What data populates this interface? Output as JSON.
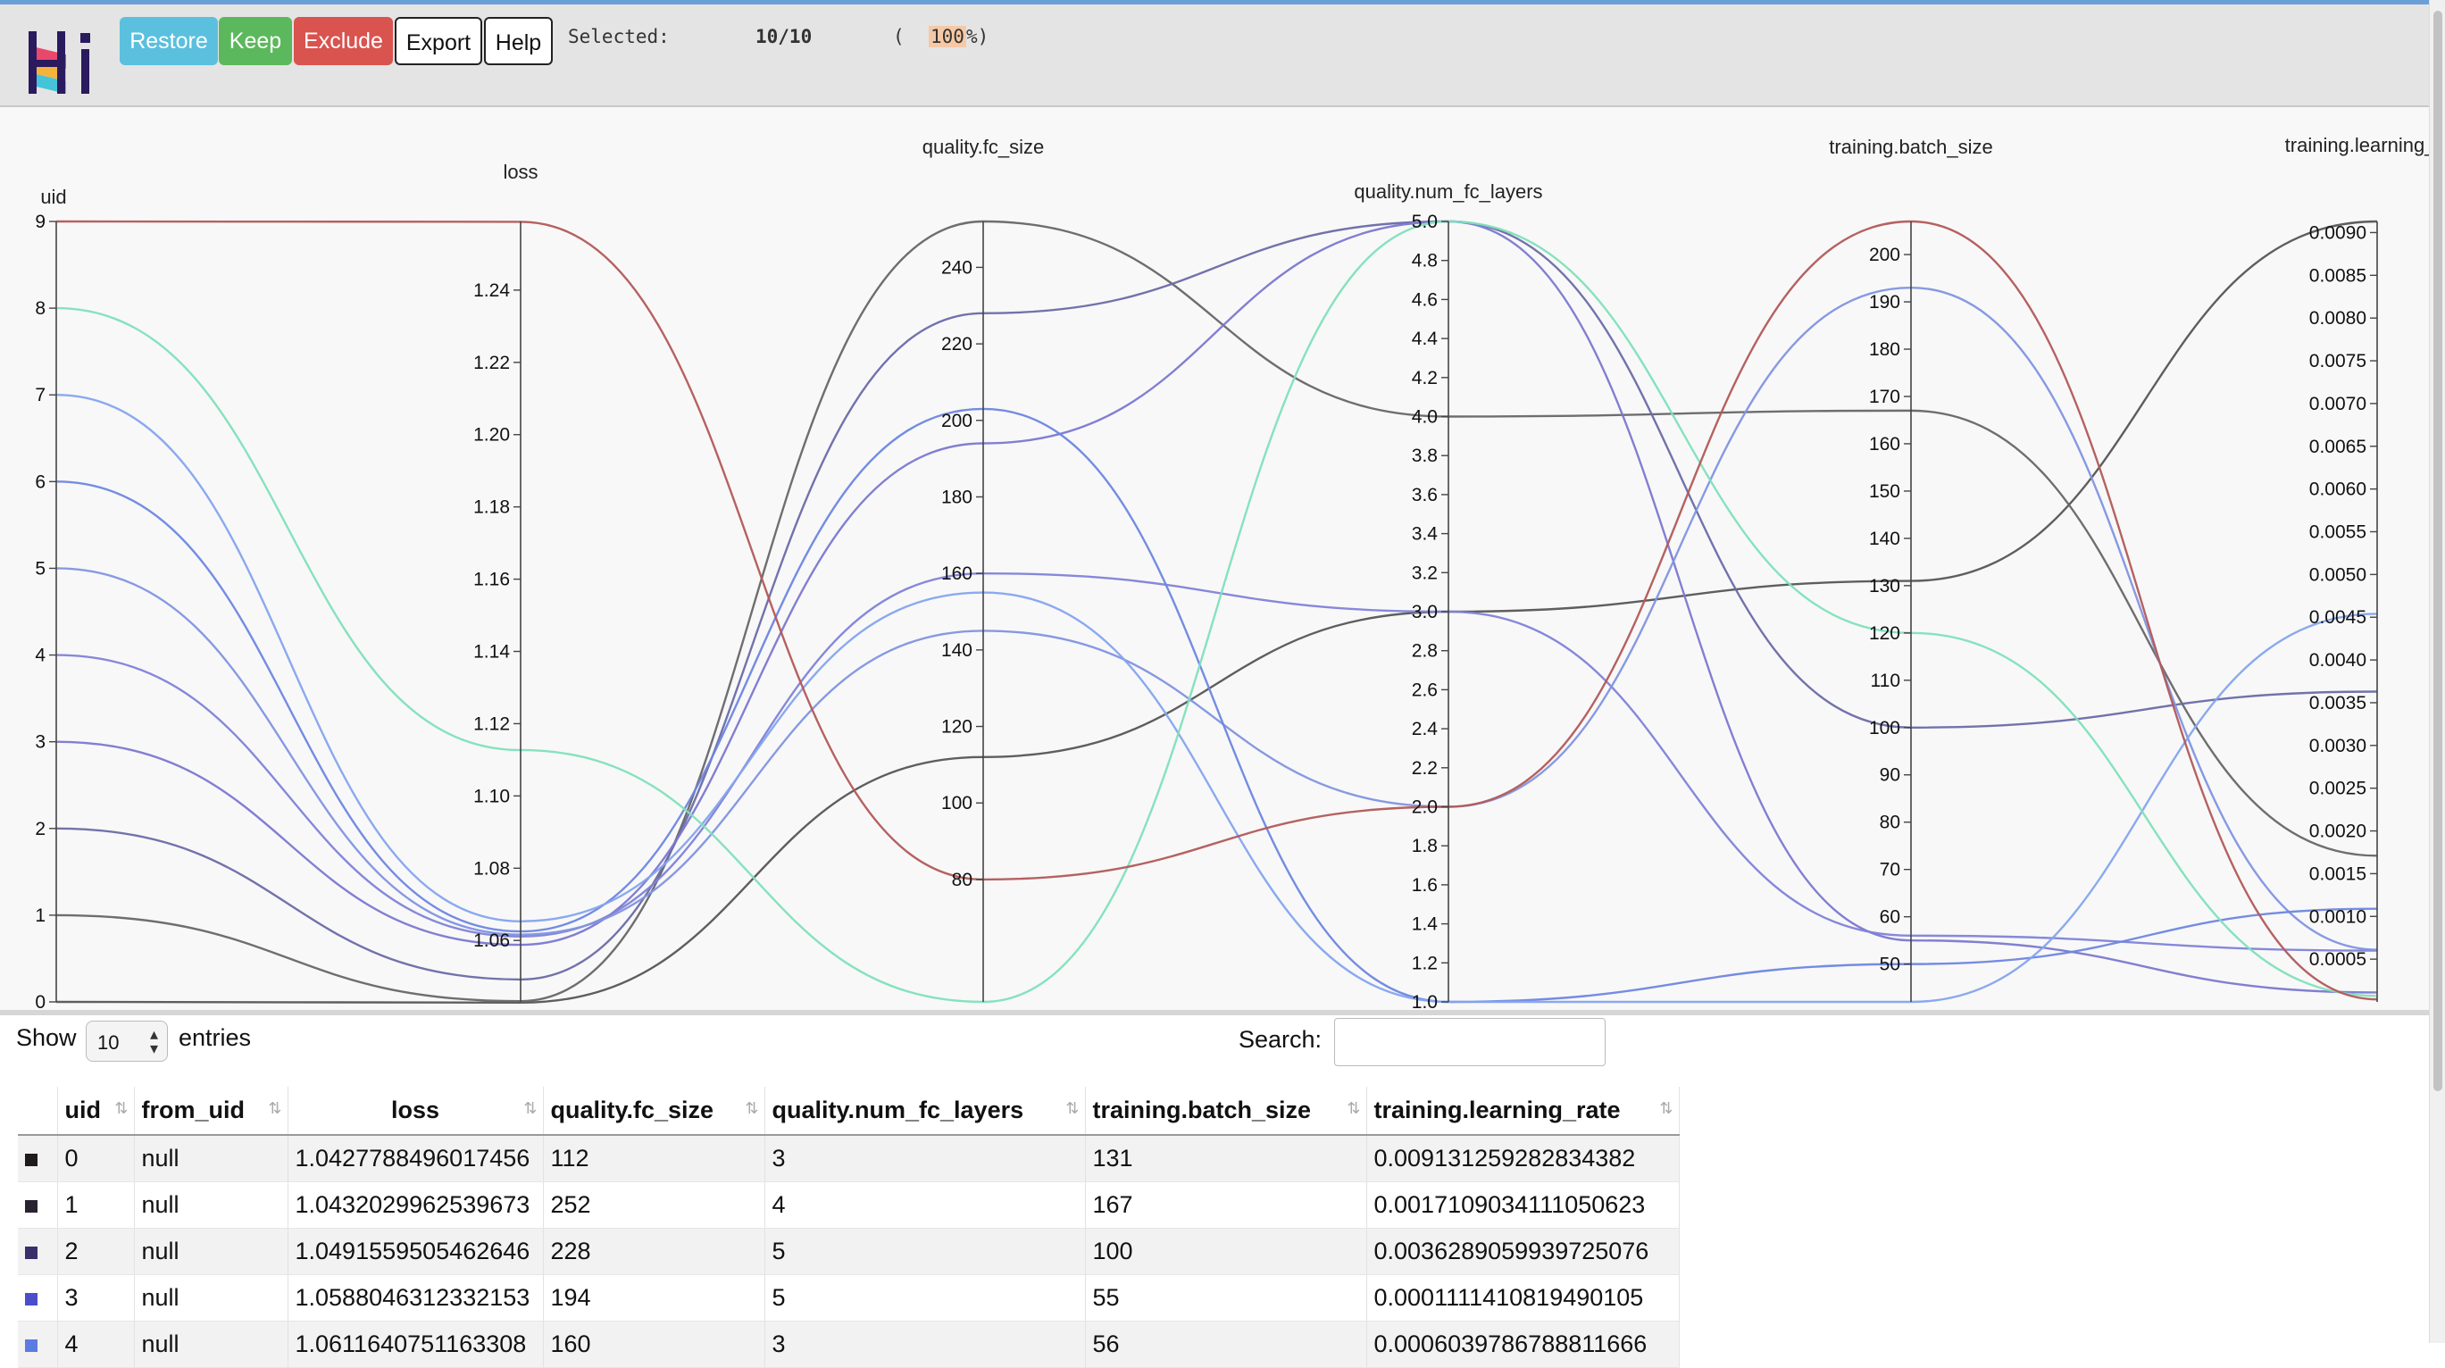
{
  "header": {
    "logo_text": "Hi",
    "buttons": {
      "restore": "Restore",
      "keep": "Keep",
      "exclude": "Exclude",
      "export": "Export",
      "help": "Help"
    },
    "selected_label": "Selected:",
    "selected_count": "10/10",
    "pct_open": "(",
    "selected_pct": "100",
    "pct_close": "%)"
  },
  "colors": {
    "restore": "#5bc0de",
    "keep": "#5cb85c",
    "exclude": "#d9534f",
    "row_0": "#1f1a1c",
    "row_1": "#2a2230",
    "row_2": "#3a2f6a",
    "row_3": "#4b4ec8",
    "row_4": "#5b7be0"
  },
  "chart_data": {
    "type": "parallel_coordinates",
    "axes": [
      {
        "key": "uid",
        "label": "uid",
        "domain": [
          0,
          9
        ],
        "ticks": [
          "0",
          "1",
          "2",
          "3",
          "4",
          "5",
          "6",
          "7",
          "8",
          "9"
        ]
      },
      {
        "key": "loss",
        "label": "loss",
        "domain": [
          1.043,
          1.259
        ],
        "ticks": [
          "1.06",
          "1.08",
          "1.10",
          "1.12",
          "1.14",
          "1.16",
          "1.18",
          "1.20",
          "1.22",
          "1.24"
        ]
      },
      {
        "key": "fc_size",
        "label": "quality.fc_size",
        "domain": [
          48,
          252
        ],
        "ticks": [
          "80",
          "100",
          "120",
          "140",
          "160",
          "180",
          "200",
          "220",
          "240"
        ]
      },
      {
        "key": "num_fc_layers",
        "label": "quality.num_fc_layers",
        "domain": [
          1.0,
          5.0
        ],
        "ticks": [
          "1.0",
          "1.2",
          "1.4",
          "1.6",
          "1.8",
          "2.0",
          "2.2",
          "2.4",
          "2.6",
          "2.8",
          "3.0",
          "3.2",
          "3.4",
          "3.6",
          "3.8",
          "4.0",
          "4.2",
          "4.4",
          "4.6",
          "4.8",
          "5.0"
        ]
      },
      {
        "key": "batch_size",
        "label": "training.batch_size",
        "domain": [
          42,
          207
        ],
        "ticks": [
          "50",
          "60",
          "70",
          "80",
          "90",
          "100",
          "110",
          "120",
          "130",
          "140",
          "150",
          "160",
          "170",
          "180",
          "190",
          "200"
        ]
      },
      {
        "key": "learning_rate",
        "label": "training.learning_rate",
        "domain": [
          0.0,
          0.00913
        ],
        "ticks": [
          "0.0005",
          "0.0010",
          "0.0015",
          "0.0020",
          "0.0025",
          "0.0030",
          "0.0035",
          "0.0040",
          "0.0045",
          "0.0050",
          "0.0055",
          "0.0060",
          "0.0065",
          "0.0070",
          "0.0075",
          "0.0080",
          "0.0085",
          "0.0090"
        ]
      }
    ],
    "series": [
      {
        "values": [
          0,
          1.0428,
          112,
          3,
          131,
          0.00913
        ],
        "color": "#555555"
      },
      {
        "values": [
          1,
          1.0432,
          252,
          4,
          167,
          0.00171
        ],
        "color": "#666666"
      },
      {
        "values": [
          2,
          1.0492,
          228,
          5,
          100,
          0.00363
        ],
        "color": "#6a6aa8"
      },
      {
        "values": [
          3,
          1.0588,
          194,
          5,
          55,
          0.00011
        ],
        "color": "#7b78d0"
      },
      {
        "values": [
          4,
          1.0611,
          160,
          3,
          56,
          0.0006
        ],
        "color": "#7f82d8"
      },
      {
        "values": [
          5,
          1.0616,
          145,
          2,
          193,
          0.00061
        ],
        "color": "#8194e0"
      },
      {
        "values": [
          6,
          1.0625,
          203,
          1,
          50,
          0.00109
        ],
        "color": "#6d86e0"
      },
      {
        "values": [
          7,
          1.0653,
          155,
          1,
          42,
          0.00454
        ],
        "color": "#84a4ee"
      },
      {
        "values": [
          8,
          1.1127,
          48,
          5,
          120,
          7e-05
        ],
        "color": "#7fe0bb"
      },
      {
        "values": [
          9,
          1.2589,
          80,
          2,
          207,
          3e-05
        ],
        "color": "#b25858"
      }
    ]
  },
  "table": {
    "show_label": "Show",
    "length_value": "10",
    "entries_label": "entries",
    "search_label": "Search:",
    "search_value": "",
    "columns": [
      "uid",
      "from_uid",
      "loss",
      "quality.fc_size",
      "quality.num_fc_layers",
      "training.batch_size",
      "training.learning_rate"
    ],
    "rows": [
      {
        "uid": "0",
        "from_uid": "null",
        "loss": "1.0427788496017456",
        "fc_size": "112",
        "num_fc_layers": "3",
        "batch_size": "131",
        "learning_rate": "0.009131259282834382"
      },
      {
        "uid": "1",
        "from_uid": "null",
        "loss": "1.0432029962539673",
        "fc_size": "252",
        "num_fc_layers": "4",
        "batch_size": "167",
        "learning_rate": "0.0017109034111050623"
      },
      {
        "uid": "2",
        "from_uid": "null",
        "loss": "1.0491559505462646",
        "fc_size": "228",
        "num_fc_layers": "5",
        "batch_size": "100",
        "learning_rate": "0.0036289059939725076"
      },
      {
        "uid": "3",
        "from_uid": "null",
        "loss": "1.0588046312332153",
        "fc_size": "194",
        "num_fc_layers": "5",
        "batch_size": "55",
        "learning_rate": "0.0001111410819490105"
      },
      {
        "uid": "4",
        "from_uid": "null",
        "loss": "1.0611640751163308",
        "fc_size": "160",
        "num_fc_layers": "3",
        "batch_size": "56",
        "learning_rate": "0.0006039786788811666"
      }
    ]
  }
}
